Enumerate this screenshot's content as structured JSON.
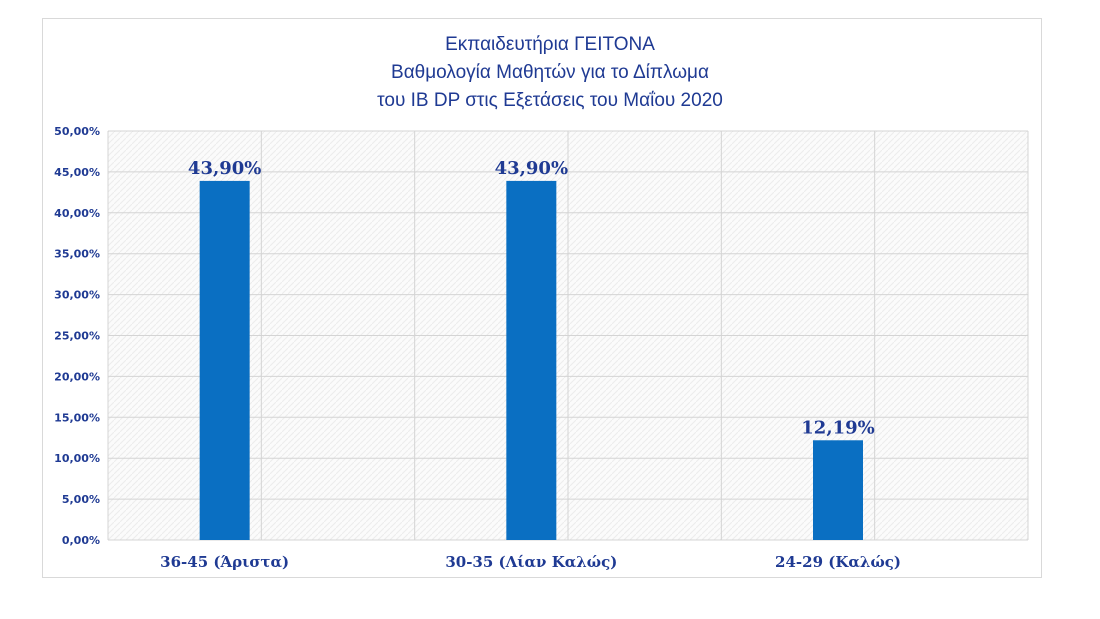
{
  "chart_data": {
    "type": "bar",
    "title": [
      "Εκπαιδευτήρια ΓΕΙΤΟΝΑ",
      "Βαθμολογία Μαθητών για το Δίπλωμα",
      "του IB DP στις Εξετάσεις του Μαΐου 2020"
    ],
    "categories": [
      "36-45 (Άριστα)",
      "30-35 (Λίαν Καλώς)",
      "24-29 (Καλώς)"
    ],
    "values": [
      43.9,
      43.9,
      12.19
    ],
    "data_labels": [
      "43,90%",
      "43,90%",
      "12,19%"
    ],
    "y_ticks": [
      "0,00%",
      "5,00%",
      "10,00%",
      "15,00%",
      "20,00%",
      "25,00%",
      "30,00%",
      "35,00%",
      "40,00%",
      "45,00%",
      "50,00%"
    ],
    "ylim": [
      0,
      50
    ],
    "y_unit": "percent",
    "grid": true,
    "legend": "none",
    "colors": {
      "bar": "#0a6fc2",
      "text": "#1f3a93",
      "grid": "#d4d4d4"
    }
  }
}
